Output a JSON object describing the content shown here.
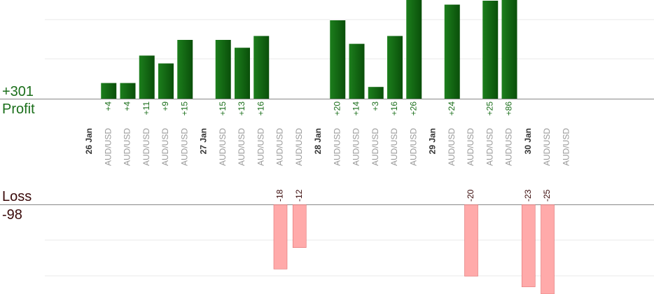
{
  "summary": {
    "profit_total": "+301",
    "profit_label": "Profit",
    "loss_label": "Loss",
    "loss_total": "-98"
  },
  "colors": {
    "profit_bar_dark": "#0a4f0a",
    "profit_bar_light": "#1c7e1c",
    "profit_text": "#1a6e1a",
    "loss_bar": "#ffaaaa",
    "loss_bar_edge": "#e07070",
    "loss_text": "#3a0a0a",
    "grid": "#e8e8e8",
    "axis": "#888888",
    "date_text": "#333333",
    "pair_text": "#999999"
  },
  "chart_data": {
    "type": "bar",
    "categories": [
      "26 Jan",
      "AUD/USD",
      "AUD/USD",
      "AUD/USD",
      "AUD/USD",
      "AUD/USD",
      "27 Jan",
      "AUD/USD",
      "AUD/USD",
      "AUD/USD",
      "AUD/USD",
      "AUD/USD",
      "28 Jan",
      "AUD/USD",
      "AUD/USD",
      "AUD/USD",
      "AUD/USD",
      "AUD/USD",
      "29 Jan",
      "AUD/USD",
      "AUD/USD",
      "AUD/USD",
      "AUD/USD",
      "30 Jan",
      "AUD/USD",
      "AUD/USD"
    ],
    "category_kind": [
      "date",
      "pair",
      "pair",
      "pair",
      "pair",
      "pair",
      "date",
      "pair",
      "pair",
      "pair",
      "pair",
      "pair",
      "date",
      "pair",
      "pair",
      "pair",
      "pair",
      "pair",
      "date",
      "pair",
      "pair",
      "pair",
      "pair",
      "date",
      "pair",
      "pair"
    ],
    "series": [
      {
        "name": "Profit",
        "values": [
          null,
          4,
          4,
          11,
          9,
          15,
          null,
          15,
          13,
          16,
          null,
          null,
          null,
          20,
          14,
          3,
          16,
          26,
          null,
          24,
          null,
          25,
          86,
          null,
          null,
          null
        ],
        "labels": [
          null,
          "+4",
          "+4",
          "+11",
          "+9",
          "+15",
          null,
          "+15",
          "+13",
          "+16",
          null,
          null,
          null,
          "+20",
          "+14",
          "+3",
          "+16",
          "+26",
          null,
          "+24",
          null,
          "+25",
          "+86",
          null,
          null,
          null
        ]
      },
      {
        "name": "Loss",
        "values": [
          null,
          null,
          null,
          null,
          null,
          null,
          null,
          null,
          null,
          null,
          -18,
          -12,
          null,
          null,
          null,
          null,
          null,
          null,
          null,
          null,
          -20,
          null,
          null,
          -23,
          -25,
          null
        ],
        "labels": [
          null,
          null,
          null,
          null,
          null,
          null,
          null,
          null,
          null,
          null,
          "-18",
          "-12",
          null,
          null,
          null,
          null,
          null,
          null,
          null,
          null,
          "-20",
          null,
          null,
          "-23",
          "-25",
          null
        ]
      }
    ],
    "profit_ylim": [
      0,
      26
    ],
    "loss_ylim": [
      -23,
      0
    ],
    "grid": true,
    "legend": "none"
  }
}
